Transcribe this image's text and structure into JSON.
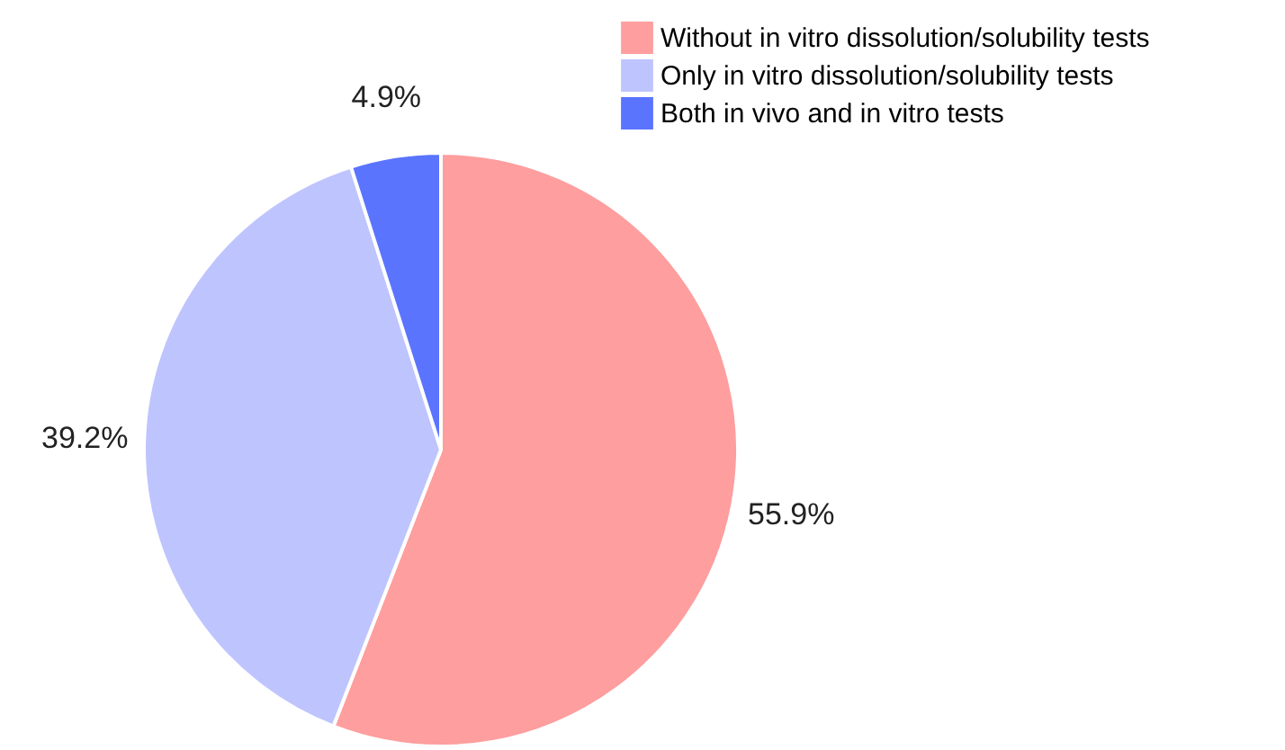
{
  "chart_data": {
    "type": "pie",
    "categories": [
      "Without in vitro dissolution/solubility tests",
      "Only in vitro dissolution/solubility tests",
      "Both in vivo and in vitro tests"
    ],
    "values": [
      55.9,
      39.2,
      4.9
    ],
    "colors": [
      "#fe9e9e",
      "#bec4fe",
      "#5a74fe"
    ],
    "value_labels": [
      "55.9%",
      "39.2%",
      "4.9%"
    ],
    "legend": "top right"
  }
}
